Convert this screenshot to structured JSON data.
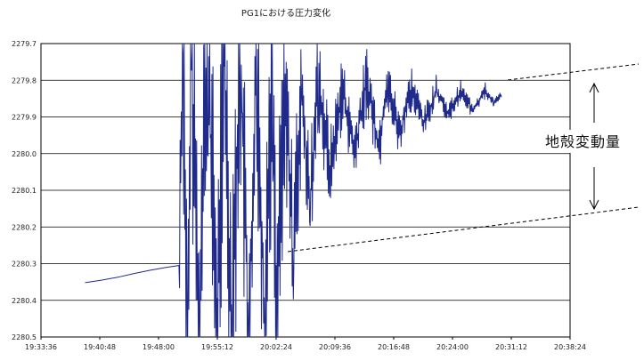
{
  "chart_data": {
    "type": "line",
    "title": "PG1における圧力変化",
    "xlabel": "",
    "ylabel": "",
    "x_tick_labels": [
      "19:33:36",
      "19:40:48",
      "19:48:00",
      "19:55:12",
      "20:02:24",
      "20:09:36",
      "20:16:48",
      "20:24:00",
      "20:31:12",
      "20:38:24"
    ],
    "y_tick_labels": [
      "2279.7",
      "2279.8",
      "2279.9",
      "2280.0",
      "2280.1",
      "2280.2",
      "2280.3",
      "2280.4",
      "2280.5"
    ],
    "xlim": [
      "19:33:36",
      "20:38:24"
    ],
    "ylim": [
      2280.5,
      2279.7
    ],
    "y_axis_reversed": true,
    "grid": "horizontal",
    "annotation": "地殻変動量",
    "series": [
      {
        "color": "#1f2a8a",
        "points": [
          [
            "19:39:00",
            2280.352
          ],
          [
            "19:41:00",
            2280.345
          ],
          [
            "19:43:00",
            2280.337
          ],
          [
            "19:45:00",
            2280.327
          ],
          [
            "19:47:00",
            2280.318
          ],
          [
            "19:49:00",
            2280.31
          ],
          [
            "19:50:30",
            2280.305
          ],
          [
            "19:51:00",
            2279.7
          ],
          [
            "19:51:30",
            2280.5
          ],
          [
            "19:52:00",
            2279.7
          ],
          [
            "19:53:00",
            2280.5
          ],
          [
            "19:54:00",
            2279.7
          ],
          [
            "19:55:12",
            2280.5
          ],
          [
            "19:56:00",
            2279.7
          ],
          [
            "19:57:00",
            2280.5
          ],
          [
            "19:58:00",
            2279.72
          ],
          [
            "19:59:00",
            2280.48
          ],
          [
            "20:00:00",
            2279.74
          ],
          [
            "20:01:00",
            2280.45
          ],
          [
            "20:02:00",
            2279.78
          ],
          [
            "20:02:24",
            2280.5
          ],
          [
            "20:03:30",
            2279.8
          ],
          [
            "20:04:30",
            2280.3
          ],
          [
            "20:05:30",
            2279.82
          ],
          [
            "20:06:30",
            2280.15
          ],
          [
            "20:07:30",
            2279.78
          ],
          [
            "20:09:00",
            2280.05
          ],
          [
            "20:10:30",
            2279.82
          ],
          [
            "20:12:00",
            2280.0
          ],
          [
            "20:13:30",
            2279.8
          ],
          [
            "20:15:00",
            2279.98
          ],
          [
            "20:16:00",
            2279.8
          ],
          [
            "20:17:30",
            2279.95
          ],
          [
            "20:19:00",
            2279.82
          ],
          [
            "20:20:30",
            2279.92
          ],
          [
            "20:22:00",
            2279.83
          ],
          [
            "20:23:30",
            2279.89
          ],
          [
            "20:25:00",
            2279.83
          ],
          [
            "20:26:30",
            2279.88
          ],
          [
            "20:28:00",
            2279.83
          ],
          [
            "20:29:00",
            2279.86
          ],
          [
            "20:30:00",
            2279.84
          ]
        ]
      }
    ]
  }
}
